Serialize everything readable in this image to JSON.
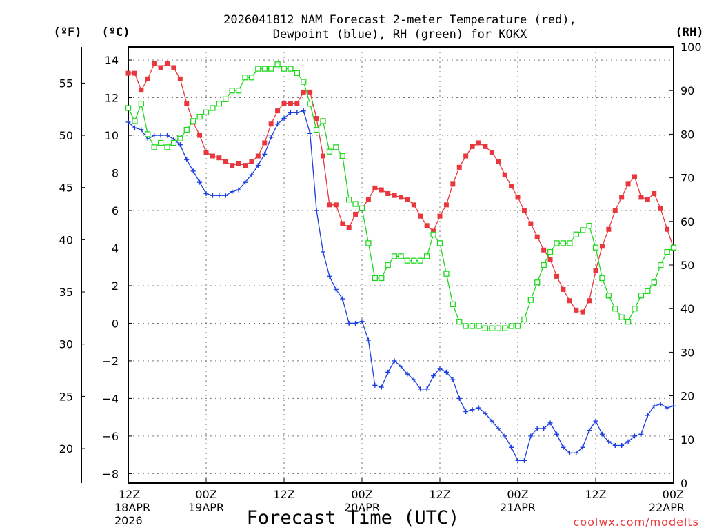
{
  "chart_data": {
    "type": "line",
    "title": [
      "2026041812 NAM Forecast 2-meter Temperature (red),",
      "Dewpoint (blue), RH (green) for KOKX"
    ],
    "xlabel": "Forecast Time (UTC)",
    "credit": "coolwx.com/modelts",
    "units": {
      "f": "(ºF)",
      "c": "(ºC)",
      "rh": "(RH)"
    },
    "x_hours": [
      0,
      1,
      2,
      3,
      4,
      5,
      6,
      7,
      8,
      9,
      10,
      11,
      12,
      13,
      14,
      15,
      16,
      17,
      18,
      19,
      20,
      21,
      22,
      23,
      24,
      25,
      26,
      27,
      28,
      29,
      30,
      31,
      32,
      33,
      34,
      35,
      36,
      37,
      38,
      39,
      40,
      41,
      42,
      43,
      44,
      45,
      46,
      47,
      48,
      49,
      50,
      51,
      52,
      53,
      54,
      55,
      56,
      57,
      58,
      59,
      60,
      61,
      62,
      63,
      64,
      65,
      66,
      67,
      68,
      69,
      70,
      71,
      72,
      73,
      74,
      75,
      76,
      77,
      78,
      79,
      80,
      81,
      82,
      83,
      84
    ],
    "x_ticks": [
      {
        "h": 0,
        "lines": [
          "12Z",
          "18APR",
          "2026"
        ]
      },
      {
        "h": 12,
        "lines": [
          "00Z",
          "19APR"
        ]
      },
      {
        "h": 24,
        "lines": [
          "12Z"
        ]
      },
      {
        "h": 36,
        "lines": [
          "00Z",
          "20APR"
        ]
      },
      {
        "h": 48,
        "lines": [
          "12Z"
        ]
      },
      {
        "h": 60,
        "lines": [
          "00Z",
          "21APR"
        ]
      },
      {
        "h": 72,
        "lines": [
          "12Z"
        ]
      },
      {
        "h": 84,
        "lines": [
          "00Z",
          "22APR"
        ]
      }
    ],
    "c_axis": {
      "range": [
        -8.5,
        14.7
      ],
      "ticks": [
        "−8",
        "−6",
        "−4",
        "−2",
        "0",
        "2",
        "4",
        "6",
        "8",
        "10",
        "12",
        "14"
      ]
    },
    "f_axis": {
      "ticks": [
        "20",
        "25",
        "30",
        "35",
        "40",
        "45",
        "50",
        "55"
      ]
    },
    "rh_axis": {
      "range": [
        0,
        100
      ],
      "ticks": [
        "0",
        "10",
        "20",
        "30",
        "40",
        "50",
        "60",
        "70",
        "80",
        "90",
        "100"
      ]
    },
    "series": [
      {
        "name": "Temperature (°C)",
        "color": "#e8383d",
        "marker": "filled-square",
        "axis": "c",
        "values": [
          13.3,
          13.3,
          12.4,
          13.0,
          13.8,
          13.6,
          13.8,
          13.6,
          13.0,
          11.7,
          10.7,
          10.0,
          9.1,
          8.9,
          8.8,
          8.6,
          8.4,
          8.5,
          8.4,
          8.6,
          8.9,
          9.6,
          10.6,
          11.3,
          11.7,
          11.7,
          11.7,
          12.3,
          12.3,
          10.9,
          8.9,
          6.3,
          6.3,
          5.3,
          5.1,
          5.8,
          6.1,
          6.6,
          7.2,
          7.1,
          6.9,
          6.8,
          6.7,
          6.6,
          6.3,
          5.7,
          5.2,
          4.9,
          5.7,
          6.3,
          7.4,
          8.3,
          8.9,
          9.4,
          9.6,
          9.4,
          9.1,
          8.6,
          7.9,
          7.3,
          6.7,
          6.0,
          5.3,
          4.6,
          3.9,
          3.4,
          2.5,
          1.8,
          1.2,
          0.7,
          0.6,
          1.2,
          2.8,
          4.1,
          5.0,
          6.0,
          6.7,
          7.4,
          7.8,
          6.7,
          6.6,
          6.9,
          6.1,
          5.0,
          4.0
        ]
      },
      {
        "name": "Dewpoint (°C)",
        "color": "#1b3ee0",
        "marker": "plus",
        "axis": "c",
        "values": [
          10.7,
          10.4,
          10.3,
          9.8,
          10.0,
          10.0,
          10.0,
          9.8,
          9.5,
          8.7,
          8.1,
          7.5,
          6.9,
          6.8,
          6.8,
          6.8,
          7.0,
          7.1,
          7.5,
          7.9,
          8.4,
          9.0,
          9.9,
          10.6,
          10.9,
          11.2,
          11.2,
          11.3,
          10.1,
          6.0,
          3.8,
          2.5,
          1.8,
          1.3,
          0.0,
          0.0,
          0.1,
          -0.9,
          -3.3,
          -3.4,
          -2.6,
          -2.0,
          -2.3,
          -2.7,
          -3.0,
          -3.5,
          -3.5,
          -2.8,
          -2.4,
          -2.6,
          -3.0,
          -4.0,
          -4.7,
          -4.6,
          -4.5,
          -4.8,
          -5.2,
          -5.6,
          -6.0,
          -6.6,
          -7.3,
          -7.3,
          -6.0,
          -5.6,
          -5.6,
          -5.3,
          -5.9,
          -6.6,
          -6.9,
          -6.9,
          -6.6,
          -5.7,
          -5.2,
          -5.9,
          -6.3,
          -6.5,
          -6.5,
          -6.3,
          -6.0,
          -5.9,
          -4.9,
          -4.4,
          -4.3,
          -4.5,
          -4.4
        ]
      },
      {
        "name": "RH (%)",
        "color": "#1ed81e",
        "marker": "open-square",
        "axis": "rh",
        "values": [
          86,
          83,
          87,
          80,
          77,
          78,
          77,
          78,
          79,
          81,
          83,
          84,
          85,
          86,
          87,
          88,
          90,
          90,
          93,
          93,
          95,
          95,
          95,
          96,
          95,
          95,
          94,
          92,
          87,
          81,
          83,
          76,
          77,
          75,
          65,
          64,
          63,
          55,
          47,
          47,
          50,
          52,
          52,
          51,
          51,
          51,
          52,
          57,
          55,
          48,
          41,
          37,
          36,
          36,
          36,
          35.5,
          35.5,
          35.5,
          35.5,
          36,
          36,
          37.5,
          42,
          46,
          50,
          53,
          55,
          55,
          55,
          57,
          58,
          59,
          54,
          47,
          43,
          40,
          38,
          37,
          40,
          43,
          44,
          46,
          50,
          53,
          54
        ]
      }
    ]
  }
}
